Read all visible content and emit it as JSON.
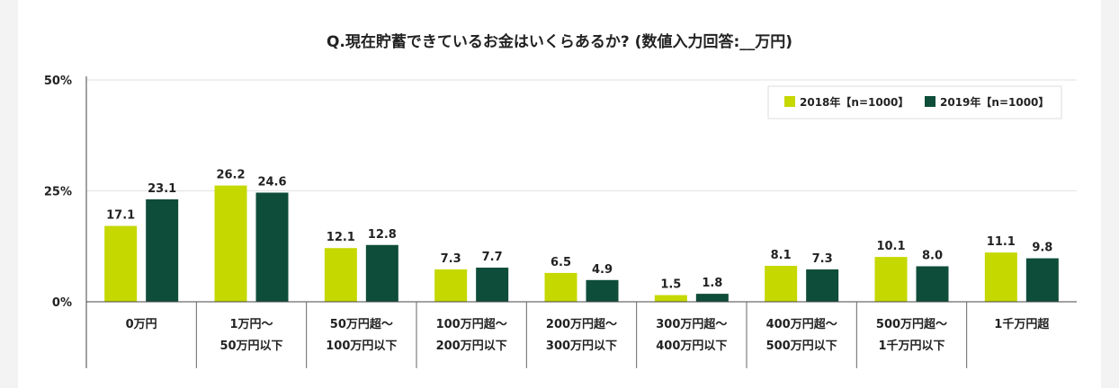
{
  "chart_data": {
    "type": "bar",
    "title": "Q.現在貯蓄できているお金はいくらあるか? (数値入力回答:__万円)",
    "ylim": [
      0,
      50
    ],
    "yticks": [
      "0%",
      "25%",
      "50%"
    ],
    "ytick_values": [
      0,
      25,
      50
    ],
    "grid": true,
    "legend_position": "top-right",
    "categories": [
      [
        "0万円"
      ],
      [
        "1万円～",
        "50万円以下"
      ],
      [
        "50万円超～",
        "100万円以下"
      ],
      [
        "100万円超～",
        "200万円以下"
      ],
      [
        "200万円超～",
        "300万円以下"
      ],
      [
        "300万円超～",
        "400万円以下"
      ],
      [
        "400万円超～",
        "500万円以下"
      ],
      [
        "500万円超～",
        "1千万円以下"
      ],
      [
        "1千万円超"
      ]
    ],
    "series": [
      {
        "name": "2018年【n=1000】",
        "color": "#c5d800",
        "values": [
          17.1,
          26.2,
          12.1,
          7.3,
          6.5,
          1.5,
          8.1,
          10.1,
          11.1
        ],
        "labels": [
          "17.1",
          "26.2",
          "12.1",
          "7.3",
          "6.5",
          "1.5",
          "8.1",
          "10.1",
          "11.1"
        ]
      },
      {
        "name": "2019年【n=1000】",
        "color": "#0e4d3a",
        "values": [
          23.1,
          24.6,
          12.8,
          7.7,
          4.9,
          1.8,
          7.3,
          8.0,
          9.8
        ],
        "labels": [
          "23.1",
          "24.6",
          "12.8",
          "7.7",
          "4.9",
          "1.8",
          "7.3",
          "8.0",
          "9.8"
        ]
      }
    ]
  }
}
